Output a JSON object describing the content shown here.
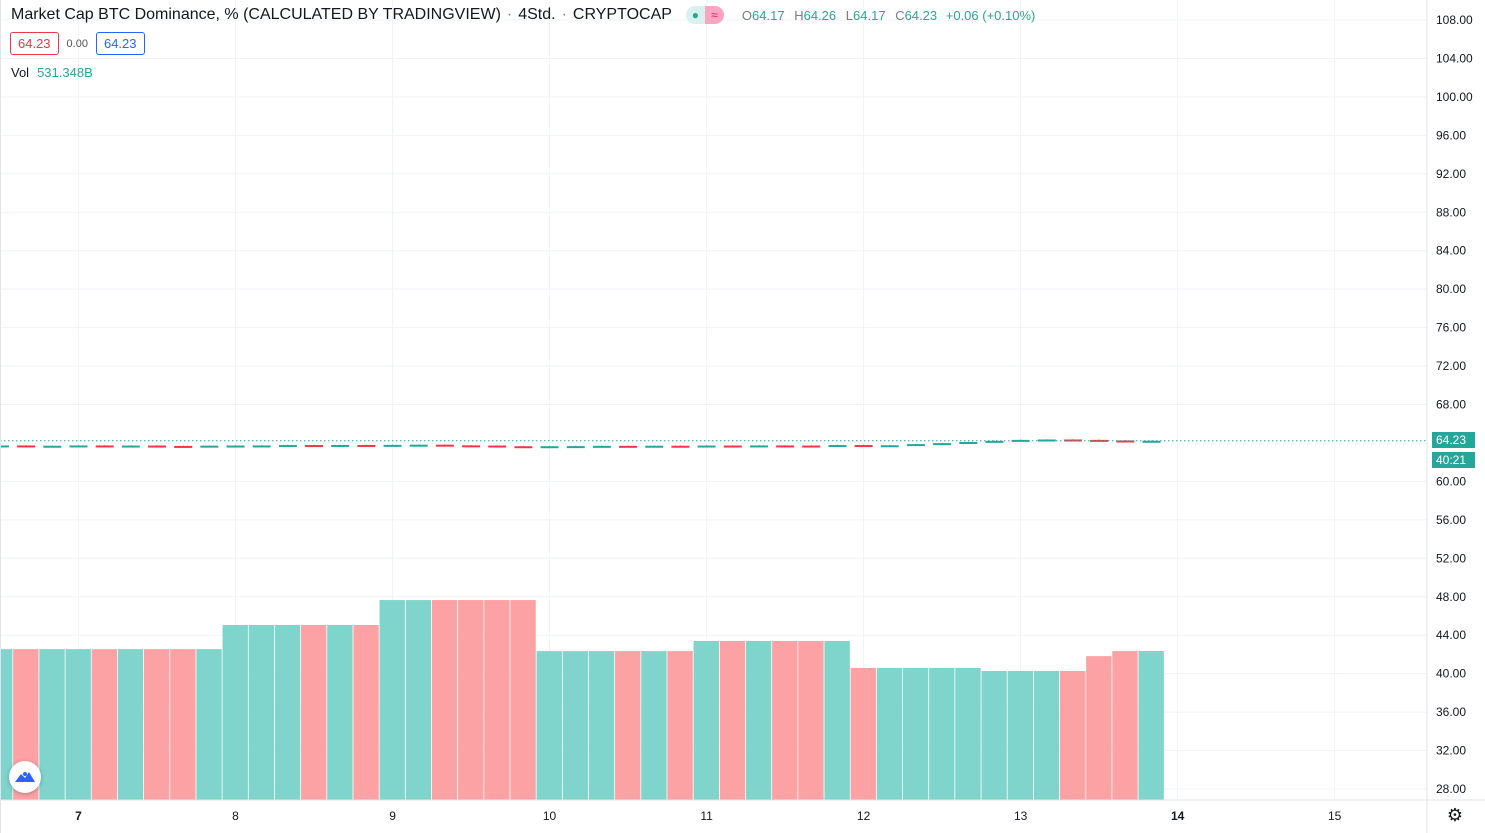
{
  "legend": {
    "title": "Market Cap BTC Dominance, % (CALCULATED BY TRADINGVIEW)",
    "interval": "4Std.",
    "exchange": "CRYPTOCAP",
    "sep": "·",
    "pill_a": "●",
    "pill_b": "≈",
    "o_label": "O",
    "o": "64.17",
    "h_label": "H",
    "h": "64.26",
    "l_label": "L",
    "l": "64.17",
    "c_label": "C",
    "c": "64.23",
    "change": "+0.06 (+0.10%)",
    "bid": "64.23",
    "spread": "0.00",
    "ask": "64.23",
    "vol_label": "Vol",
    "vol_value": "531.348B"
  },
  "price_badge": "64.23",
  "countdown_badge": "40:21",
  "colors": {
    "up": "#26a69a",
    "down": "#f23645",
    "vol_up": "#7fd4cb",
    "vol_down": "#fca1a4",
    "grid": "#f0f3fa"
  },
  "icons": {
    "logo": "tradingview-logo-icon",
    "settings": "gear-icon"
  },
  "chart_data": {
    "type": "candlestick",
    "y_ticks": [
      "108.00",
      "104.00",
      "100.00",
      "96.00",
      "92.00",
      "88.00",
      "84.00",
      "80.00",
      "76.00",
      "72.00",
      "68.00",
      "60.00",
      "56.00",
      "52.00",
      "48.00",
      "44.00",
      "40.00",
      "36.00",
      "32.00",
      "28.00"
    ],
    "ylim": [
      28,
      108
    ],
    "x_ticks": [
      {
        "label": "7",
        "candle": 3,
        "bold": true
      },
      {
        "label": "8",
        "candle": 9
      },
      {
        "label": "9",
        "candle": 15
      },
      {
        "label": "10",
        "candle": 21
      },
      {
        "label": "11",
        "candle": 27
      },
      {
        "label": "12",
        "candle": 33
      },
      {
        "label": "13",
        "candle": 39
      },
      {
        "label": "14",
        "candle": 45,
        "bold": true
      },
      {
        "label": "15",
        "candle": 51
      }
    ],
    "last_price": 64.23,
    "grid": true,
    "closes": [
      63.74,
      63.7,
      63.71,
      63.74,
      63.7,
      63.73,
      63.69,
      63.68,
      63.72,
      63.73,
      63.74,
      63.78,
      63.75,
      63.79,
      63.77,
      63.8,
      63.82,
      63.75,
      63.73,
      63.66,
      63.63,
      63.66,
      63.67,
      63.7,
      63.68,
      63.71,
      63.69,
      63.73,
      63.72,
      63.74,
      63.73,
      63.72,
      63.78,
      63.74,
      63.76,
      63.88,
      63.98,
      64.1,
      64.22,
      64.32,
      64.36,
      64.32,
      64.26,
      64.17,
      64.23
    ],
    "first_open": 63.7,
    "last_high": 64.26,
    "last_low": 64.17,
    "volume_billions": [
      538,
      538,
      538,
      538,
      538,
      538,
      538,
      538,
      538,
      624,
      624,
      624,
      624,
      624,
      624,
      713,
      713,
      713,
      713,
      713,
      713,
      531,
      531,
      531,
      531,
      531,
      531,
      567,
      567,
      567,
      567,
      567,
      567,
      471,
      471,
      471,
      471,
      471,
      460,
      460,
      460,
      460,
      513,
      531,
      531.348
    ]
  }
}
